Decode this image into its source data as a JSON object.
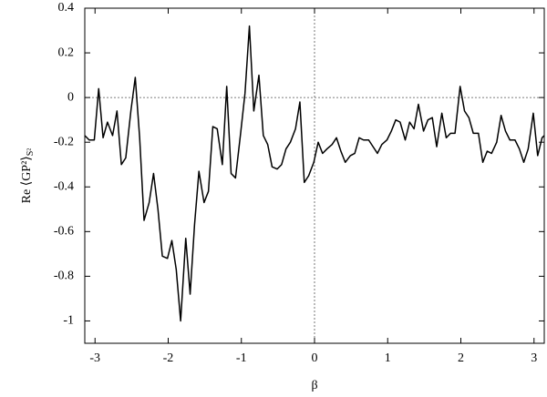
{
  "chart_data": {
    "type": "line",
    "xlabel": "β",
    "ylabel": "Re ⟨GP²⟩",
    "ylabel_sub": "S²",
    "x": [
      -3.14,
      -3.08,
      -3.01,
      -2.95,
      -2.89,
      -2.83,
      -2.76,
      -2.7,
      -2.64,
      -2.58,
      -2.51,
      -2.45,
      -2.39,
      -2.33,
      -2.26,
      -2.2,
      -2.14,
      -2.08,
      -2.01,
      -1.95,
      -1.89,
      -1.83,
      -1.76,
      -1.7,
      -1.64,
      -1.58,
      -1.51,
      -1.45,
      -1.39,
      -1.33,
      -1.26,
      -1.2,
      -1.14,
      -1.08,
      -1.01,
      -0.95,
      -0.89,
      -0.83,
      -0.76,
      -0.7,
      -0.64,
      -0.58,
      -0.51,
      -0.45,
      -0.39,
      -0.33,
      -0.26,
      -0.2,
      -0.14,
      -0.08,
      -0.01,
      0.05,
      0.11,
      0.17,
      0.24,
      0.3,
      0.36,
      0.42,
      0.49,
      0.55,
      0.61,
      0.67,
      0.74,
      0.8,
      0.86,
      0.92,
      0.99,
      1.05,
      1.11,
      1.17,
      1.24,
      1.3,
      1.36,
      1.42,
      1.49,
      1.55,
      1.61,
      1.67,
      1.74,
      1.8,
      1.86,
      1.92,
      1.99,
      2.05,
      2.11,
      2.17,
      2.24,
      2.3,
      2.36,
      2.42,
      2.49,
      2.55,
      2.61,
      2.67,
      2.74,
      2.8,
      2.86,
      2.92,
      2.99,
      3.05,
      3.11,
      3.14
    ],
    "series": [
      {
        "color": "#000000",
        "values": [
          -0.17,
          -0.19,
          -0.19,
          0.04,
          -0.18,
          -0.11,
          -0.17,
          -0.06,
          -0.3,
          -0.27,
          -0.06,
          0.09,
          -0.18,
          -0.55,
          -0.47,
          -0.34,
          -0.5,
          -0.71,
          -0.72,
          -0.64,
          -0.77,
          -1.0,
          -0.63,
          -0.88,
          -0.57,
          -0.33,
          -0.47,
          -0.42,
          -0.13,
          -0.14,
          -0.3,
          0.05,
          -0.34,
          -0.36,
          -0.16,
          0.02,
          0.32,
          -0.06,
          0.1,
          -0.17,
          -0.21,
          -0.31,
          -0.32,
          -0.3,
          -0.23,
          -0.2,
          -0.14,
          -0.02,
          -0.38,
          -0.35,
          -0.29,
          -0.2,
          -0.25,
          -0.23,
          -0.21,
          -0.18,
          -0.24,
          -0.29,
          -0.26,
          -0.25,
          -0.18,
          -0.19,
          -0.19,
          -0.22,
          -0.25,
          -0.21,
          -0.19,
          -0.15,
          -0.1,
          -0.11,
          -0.19,
          -0.11,
          -0.14,
          -0.03,
          -0.15,
          -0.1,
          -0.09,
          -0.22,
          -0.07,
          -0.18,
          -0.16,
          -0.16,
          0.05,
          -0.06,
          -0.09,
          -0.16,
          -0.16,
          -0.29,
          -0.24,
          -0.25,
          -0.2,
          -0.08,
          -0.15,
          -0.19,
          -0.19,
          -0.23,
          -0.29,
          -0.23,
          -0.07,
          -0.26,
          -0.18,
          -0.17
        ]
      }
    ],
    "xlim": [
      -3.14,
      3.14
    ],
    "xticks": [
      -3,
      -2,
      -1,
      0,
      1,
      2,
      3
    ],
    "ylim": [
      -1.1,
      0.4
    ],
    "yticks": [
      -1,
      -0.8,
      -0.6,
      -0.4,
      -0.2,
      0,
      0.2,
      0.4
    ],
    "zero_lines": true
  }
}
